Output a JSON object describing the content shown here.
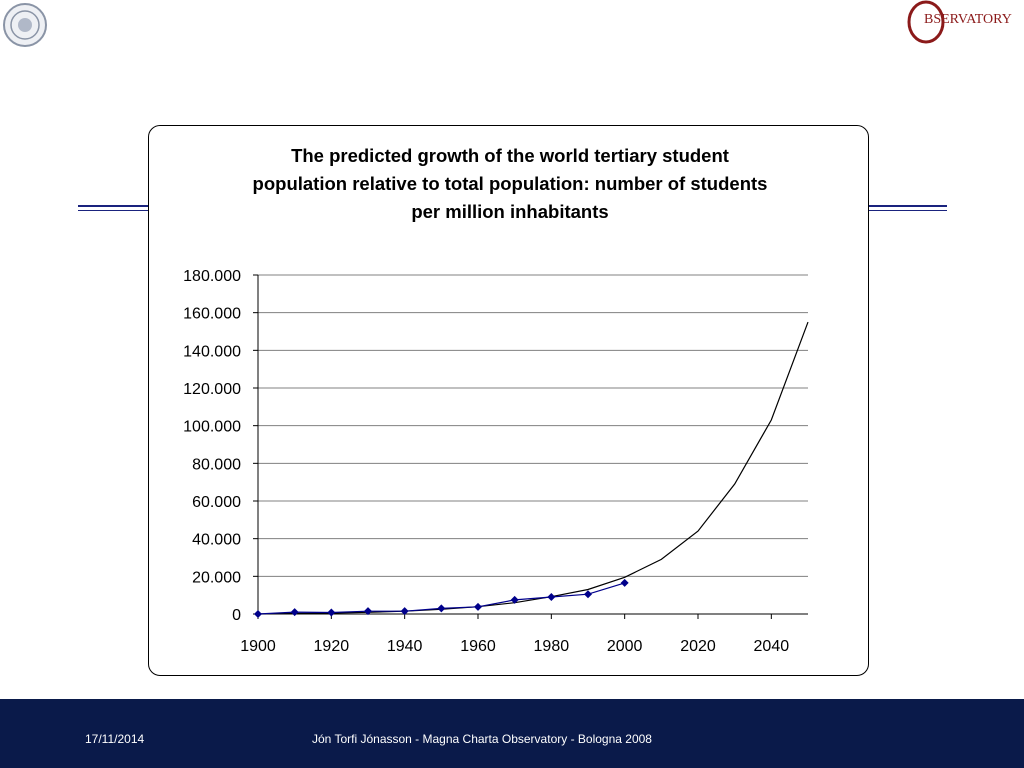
{
  "slide": {
    "footer_date": "17/11/2014",
    "footer_credit": "Jón Torfi Jónasson - Magna Charta Observatory - Bologna 2008",
    "logo_text": "BSERVATORY",
    "logo_icon": "observatory-logo-icon",
    "seal_icon": "university-seal-icon",
    "colors": {
      "footer_bg": "#0a1a4a",
      "series": "#00008b",
      "rule": "#1a237e"
    }
  },
  "chart_data": {
    "type": "line",
    "title_lines": [
      "The predicted growth of the world tertiary  student",
      "population relative to total population: number of students",
      "per million inhabitants"
    ],
    "xlabel": "",
    "ylabel": "",
    "xlim": [
      1900,
      2050
    ],
    "ylim": [
      0,
      180000
    ],
    "x_ticks": [
      1900,
      1920,
      1940,
      1960,
      1980,
      2000,
      2020,
      2040
    ],
    "x_tick_labels": [
      "1900",
      "1920",
      "1940",
      "1960",
      "1980",
      "2000",
      "2020",
      "2040"
    ],
    "y_ticks": [
      0,
      20000,
      40000,
      60000,
      80000,
      100000,
      120000,
      140000,
      160000,
      180000
    ],
    "y_tick_labels": [
      "0",
      "20.000",
      "40.000",
      "60.000",
      "80.000",
      "100.000",
      "120.000",
      "140.000",
      "160.000",
      "180.000"
    ],
    "grid": true,
    "legend": "none",
    "series": [
      {
        "marker": "diamond",
        "x": [
          1900,
          1910,
          1920,
          1930,
          1940,
          1950,
          1960,
          1970,
          1980,
          1990,
          2000
        ],
        "values": [
          0,
          1000,
          800,
          1500,
          1500,
          3000,
          3800,
          7500,
          9000,
          10500,
          16500
        ]
      },
      {
        "marker": "none",
        "x": [
          1900,
          1910,
          1920,
          1930,
          1940,
          1950,
          1960,
          1970,
          1980,
          1990,
          2000,
          2010,
          2020,
          2030,
          2040,
          2050
        ],
        "values": [
          0,
          250,
          550,
          900,
          1500,
          2500,
          3900,
          6000,
          9200,
          13000,
          19500,
          29000,
          44000,
          69000,
          103000,
          155000
        ]
      }
    ]
  }
}
